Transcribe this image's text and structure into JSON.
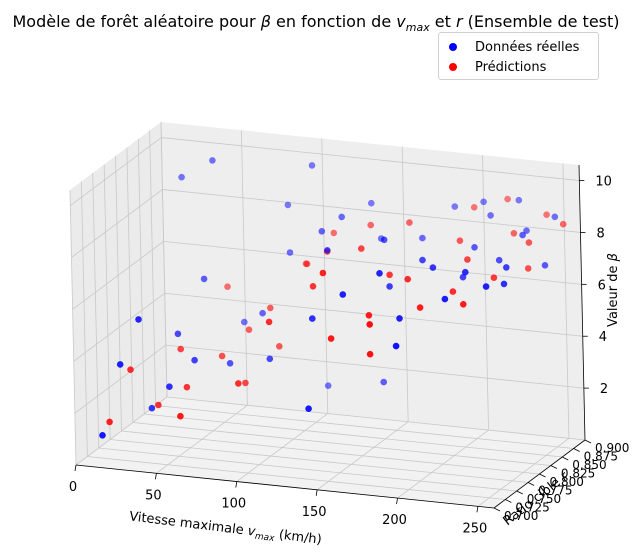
{
  "chart_data": {
    "type": "scatter",
    "title": "Modèle de forêt aléatoire pour β en fonction de v_max et r (Ensemble de test)",
    "title_parts": {
      "pre": "Modèle de forêt aléatoire pour ",
      "beta": "β",
      "mid": " en fonction de ",
      "v": "v",
      "max": "max",
      "post": " et ",
      "r": "r",
      "end": " (Ensemble de test)"
    },
    "xlabel": "Vitesse maximale v_max (km/h)",
    "xlabel_parts": {
      "pre": "Vitesse maximale ",
      "v": "v",
      "max": "max",
      "post": " (km/h)"
    },
    "ylabel": "Ratio cible r",
    "ylabel_parts": {
      "pre": "Ratio cible ",
      "r": "r"
    },
    "zlabel": "Valeur de β",
    "zlabel_parts": {
      "pre": "Valeur de ",
      "beta": "β"
    },
    "xlim": [
      0,
      260
    ],
    "ylim": [
      0.7,
      0.9
    ],
    "zlim": [
      0,
      10.6
    ],
    "x_ticks": [
      "0",
      "50",
      "100",
      "150",
      "200",
      "250"
    ],
    "y_ticks": [
      "0.700",
      "0.725",
      "0.750",
      "0.775",
      "0.800",
      "0.825",
      "0.850",
      "0.875",
      "0.900"
    ],
    "z_ticks": [
      "2",
      "4",
      "6",
      "8",
      "10"
    ],
    "grid": true,
    "legend_position": "top-right",
    "colors": {
      "real": "#0000ff",
      "pred": "#ff0000"
    },
    "series": [
      {
        "name": "Données réelles",
        "color": "#0000ff",
        "points": [
          {
            "x": 12,
            "y": 0.717,
            "z": 1.0
          },
          {
            "x": 20,
            "y": 0.731,
            "z": 3.6
          },
          {
            "x": 28,
            "y": 0.745,
            "z": 5.2
          },
          {
            "x": 25,
            "y": 0.78,
            "z": 1.3
          },
          {
            "x": 33,
            "y": 0.812,
            "z": 3.8
          },
          {
            "x": 40,
            "y": 0.847,
            "z": 5.5
          },
          {
            "x": 42,
            "y": 0.76,
            "z": 2.5
          },
          {
            "x": 48,
            "y": 0.795,
            "z": 3.1
          },
          {
            "x": 55,
            "y": 0.88,
            "z": 3.5
          },
          {
            "x": 15,
            "y": 0.89,
            "z": 8.7
          },
          {
            "x": 35,
            "y": 0.888,
            "z": 9.5
          },
          {
            "x": 95,
            "y": 0.895,
            "z": 9.6
          },
          {
            "x": 60,
            "y": 0.83,
            "z": 2.6
          },
          {
            "x": 72,
            "y": 0.861,
            "z": 4.2
          },
          {
            "x": 85,
            "y": 0.878,
            "z": 6.4
          },
          {
            "x": 90,
            "y": 0.812,
            "z": 3.2
          },
          {
            "x": 78,
            "y": 0.9,
            "z": 7.9
          },
          {
            "x": 105,
            "y": 0.885,
            "z": 1.3
          },
          {
            "x": 110,
            "y": 0.861,
            "z": 7.6
          },
          {
            "x": 120,
            "y": 0.87,
            "z": 8.1
          },
          {
            "x": 125,
            "y": 0.82,
            "z": 7.5
          },
          {
            "x": 130,
            "y": 0.9,
            "z": 8.3
          },
          {
            "x": 140,
            "y": 0.885,
            "z": 7.2
          },
          {
            "x": 132,
            "y": 0.76,
            "z": 5.7
          },
          {
            "x": 150,
            "y": 0.849,
            "z": 2.2
          },
          {
            "x": 160,
            "y": 0.822,
            "z": 8.1
          },
          {
            "x": 170,
            "y": 0.87,
            "z": 7.6
          },
          {
            "x": 180,
            "y": 0.741,
            "z": 8.0
          },
          {
            "x": 190,
            "y": 0.8,
            "z": 7.8
          },
          {
            "x": 195,
            "y": 0.73,
            "z": 6.5
          },
          {
            "x": 198,
            "y": 0.711,
            "z": 5.7
          },
          {
            "x": 205,
            "y": 0.77,
            "z": 8.0
          },
          {
            "x": 210,
            "y": 0.88,
            "z": 8.6
          },
          {
            "x": 215,
            "y": 0.8,
            "z": 7.3
          },
          {
            "x": 225,
            "y": 0.725,
            "z": 7.5
          },
          {
            "x": 232,
            "y": 0.82,
            "z": 7.8
          },
          {
            "x": 238,
            "y": 0.851,
            "z": 8.4
          },
          {
            "x": 245,
            "y": 0.79,
            "z": 8.0
          },
          {
            "x": 250,
            "y": 0.88,
            "z": 8.8
          },
          {
            "x": 255,
            "y": 0.839,
            "z": 7.5
          },
          {
            "x": 222,
            "y": 0.9,
            "z": 9.0
          },
          {
            "x": 235,
            "y": 0.87,
            "z": 8.3
          },
          {
            "x": 160,
            "y": 0.73,
            "z": 7.2
          },
          {
            "x": 172,
            "y": 0.79,
            "z": 6.8
          },
          {
            "x": 182,
            "y": 0.9,
            "z": 8.5
          },
          {
            "x": 228,
            "y": 0.76,
            "z": 8.1
          },
          {
            "x": 248,
            "y": 0.735,
            "z": 8.0
          },
          {
            "x": 252,
            "y": 0.76,
            "z": 7.8
          },
          {
            "x": 200,
            "y": 0.9,
            "z": 8.8
          },
          {
            "x": 211,
            "y": 0.84,
            "z": 7.9
          },
          {
            "x": 140,
            "y": 0.72,
            "z": 2.8
          }
        ]
      },
      {
        "name": "Prédictions",
        "color": "#ff0000",
        "points": [
          {
            "x": 10,
            "y": 0.74,
            "z": 1.2
          },
          {
            "x": 18,
            "y": 0.76,
            "z": 3.0
          },
          {
            "x": 32,
            "y": 0.77,
            "z": 1.6
          },
          {
            "x": 38,
            "y": 0.8,
            "z": 3.4
          },
          {
            "x": 50,
            "y": 0.77,
            "z": 2.4
          },
          {
            "x": 58,
            "y": 0.82,
            "z": 3.0
          },
          {
            "x": 65,
            "y": 0.855,
            "z": 3.6
          },
          {
            "x": 45,
            "y": 0.88,
            "z": 4.8
          },
          {
            "x": 80,
            "y": 0.85,
            "z": 4.6
          },
          {
            "x": 75,
            "y": 0.81,
            "z": 2.2
          },
          {
            "x": 88,
            "y": 0.84,
            "z": 3.3
          },
          {
            "x": 95,
            "y": 0.88,
            "z": 6.0
          },
          {
            "x": 100,
            "y": 0.86,
            "z": 6.3
          },
          {
            "x": 112,
            "y": 0.88,
            "z": 7.3
          },
          {
            "x": 122,
            "y": 0.83,
            "z": 7.3
          },
          {
            "x": 138,
            "y": 0.87,
            "z": 7.9
          },
          {
            "x": 145,
            "y": 0.74,
            "z": 7.8
          },
          {
            "x": 152,
            "y": 0.8,
            "z": 8.0
          },
          {
            "x": 165,
            "y": 0.86,
            "z": 8.3
          },
          {
            "x": 175,
            "y": 0.78,
            "z": 7.4
          },
          {
            "x": 185,
            "y": 0.7,
            "z": 6.6
          },
          {
            "x": 192,
            "y": 0.76,
            "z": 7.6
          },
          {
            "x": 202,
            "y": 0.84,
            "z": 8.1
          },
          {
            "x": 208,
            "y": 0.73,
            "z": 7.0
          },
          {
            "x": 218,
            "y": 0.8,
            "z": 8.0
          },
          {
            "x": 230,
            "y": 0.86,
            "z": 8.3
          },
          {
            "x": 240,
            "y": 0.78,
            "z": 7.7
          },
          {
            "x": 242,
            "y": 0.89,
            "z": 8.7
          },
          {
            "x": 250,
            "y": 0.82,
            "z": 7.6
          },
          {
            "x": 258,
            "y": 0.87,
            "z": 8.7
          },
          {
            "x": 215,
            "y": 0.9,
            "z": 9.0
          },
          {
            "x": 197,
            "y": 0.89,
            "z": 8.7
          },
          {
            "x": 176,
            "y": 0.73,
            "z": 6.5
          },
          {
            "x": 155,
            "y": 0.72,
            "z": 5.6
          },
          {
            "x": 182,
            "y": 0.71,
            "z": 5.3
          },
          {
            "x": 220,
            "y": 0.76,
            "z": 7.3
          },
          {
            "x": 235,
            "y": 0.73,
            "z": 7.3
          },
          {
            "x": 245,
            "y": 0.84,
            "z": 8.3
          },
          {
            "x": 130,
            "y": 0.77,
            "z": 6.8
          },
          {
            "x": 105,
            "y": 0.76,
            "z": 5.4
          },
          {
            "x": 60,
            "y": 0.72,
            "z": 2.0
          },
          {
            "x": 85,
            "y": 0.76,
            "z": 2.9
          }
        ]
      }
    ]
  }
}
